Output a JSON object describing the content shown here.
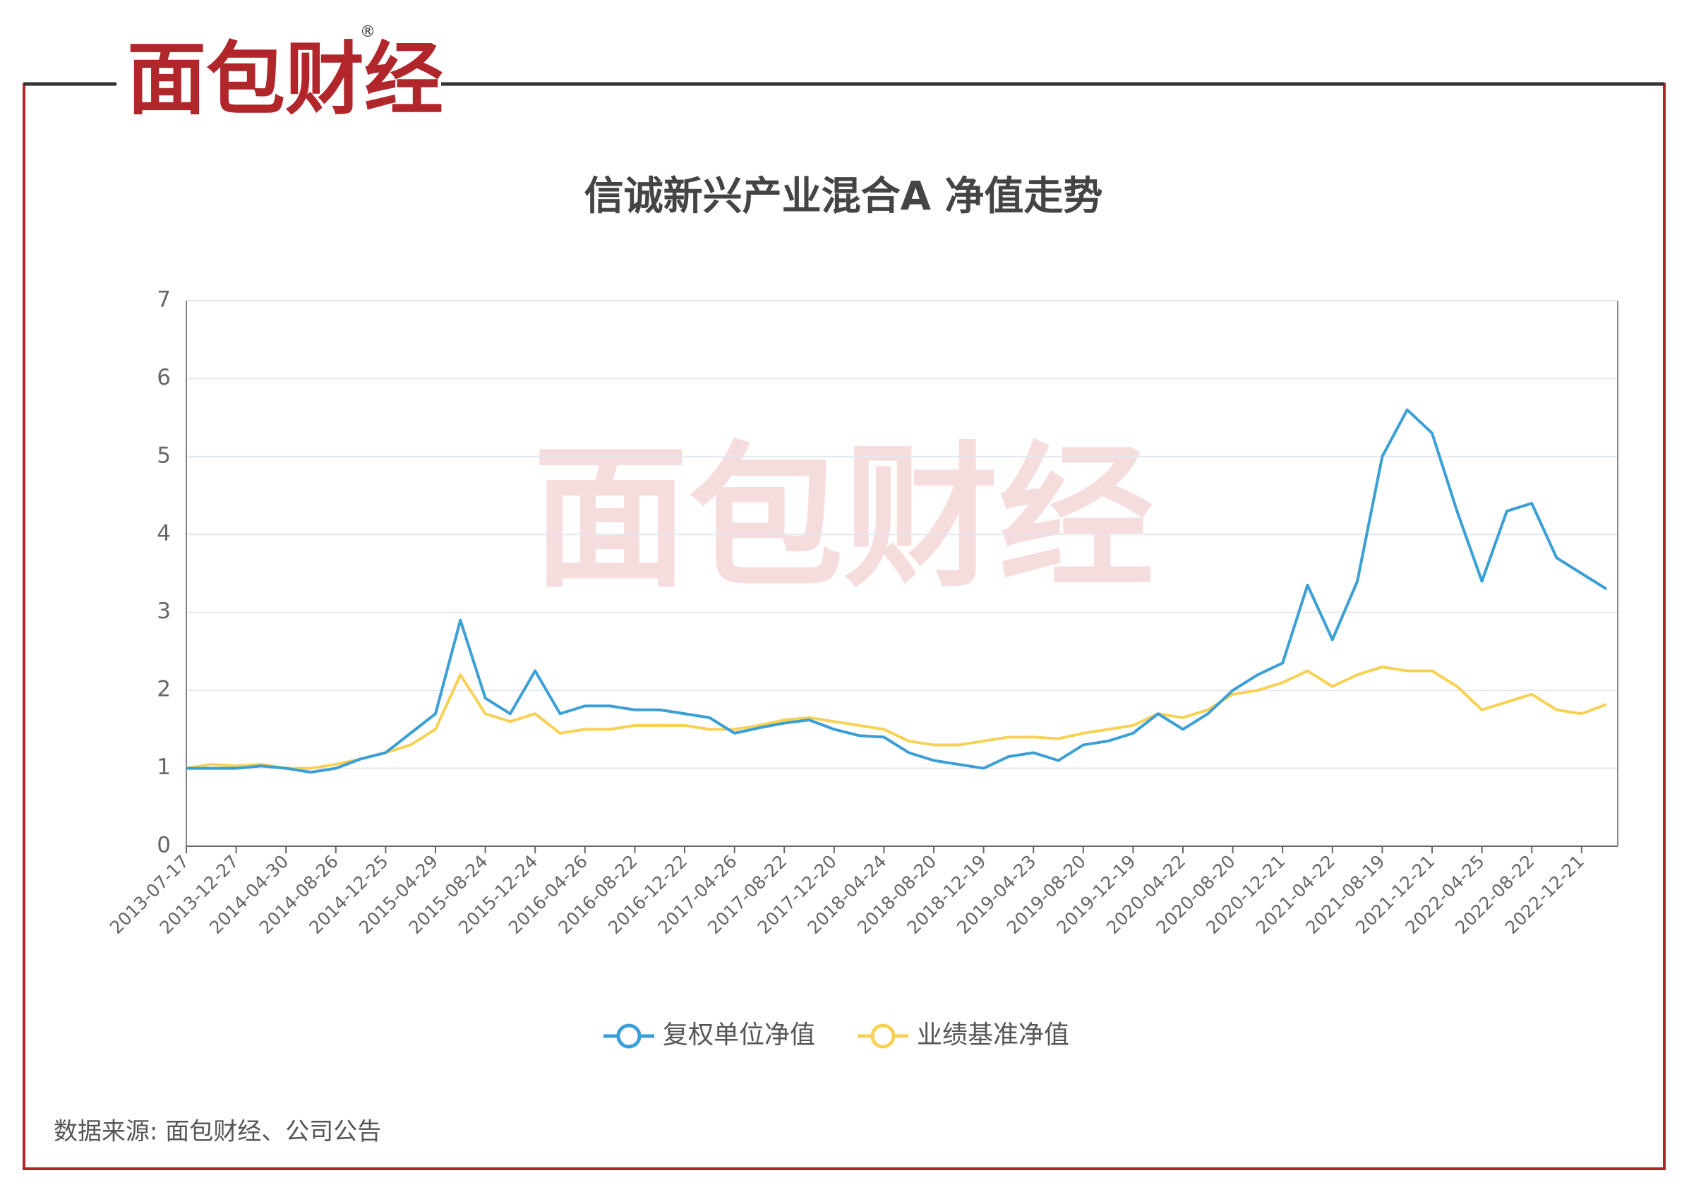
{
  "logo": {
    "name": "面包财经",
    "mark": "®"
  },
  "source": "数据来源: 面包财经、公司公告",
  "chart_data": {
    "type": "line",
    "title": "信诚新兴产业混合A 净值走势",
    "categories": [
      "2013-07-17",
      null,
      "2013-12-27",
      null,
      "2014-04-30",
      null,
      "2014-08-26",
      null,
      "2014-12-25",
      null,
      "2015-04-29",
      null,
      "2015-08-24",
      null,
      "2015-12-24",
      null,
      "2016-04-26",
      null,
      "2016-08-22",
      null,
      "2016-12-22",
      null,
      "2017-04-26",
      null,
      "2017-08-22",
      null,
      "2017-12-20",
      null,
      "2018-04-24",
      null,
      "2018-08-20",
      null,
      "2018-12-19",
      null,
      "2019-04-23",
      null,
      "2019-08-20",
      null,
      "2019-12-19",
      null,
      "2020-04-22",
      null,
      "2020-08-20",
      null,
      "2020-12-21",
      null,
      "2021-04-22",
      null,
      "2021-08-19",
      null,
      "2021-12-21",
      null,
      "2022-04-25",
      null,
      "2022-08-22",
      null,
      "2022-12-21",
      null
    ],
    "series": [
      {
        "name": "复权单位净值",
        "color": "#3a9fd6",
        "values": [
          1.0,
          1.0,
          1.0,
          1.03,
          1.0,
          0.95,
          1.0,
          1.12,
          1.2,
          1.45,
          1.7,
          2.9,
          1.9,
          1.7,
          2.25,
          1.7,
          1.8,
          1.8,
          1.75,
          1.75,
          1.7,
          1.65,
          1.45,
          1.52,
          1.58,
          1.62,
          1.5,
          1.42,
          1.4,
          1.2,
          1.1,
          1.05,
          1.0,
          1.15,
          1.2,
          1.1,
          1.3,
          1.35,
          1.45,
          1.7,
          1.5,
          1.7,
          2.0,
          2.2,
          2.35,
          3.35,
          2.65,
          3.4,
          5.0,
          5.6,
          5.3,
          4.3,
          3.4,
          4.3,
          4.4,
          3.7,
          3.5,
          3.3
        ]
      },
      {
        "name": "业绩基准净值",
        "color": "#f7d154",
        "values": [
          1.0,
          1.05,
          1.03,
          1.05,
          1.0,
          1.0,
          1.05,
          1.12,
          1.2,
          1.3,
          1.5,
          2.2,
          1.7,
          1.6,
          1.7,
          1.45,
          1.5,
          1.5,
          1.55,
          1.55,
          1.55,
          1.5,
          1.5,
          1.55,
          1.62,
          1.65,
          1.6,
          1.55,
          1.5,
          1.35,
          1.3,
          1.3,
          1.35,
          1.4,
          1.4,
          1.38,
          1.45,
          1.5,
          1.55,
          1.7,
          1.65,
          1.75,
          1.95,
          2.0,
          2.1,
          2.25,
          2.05,
          2.2,
          2.3,
          2.25,
          2.25,
          2.05,
          1.75,
          1.85,
          1.95,
          1.75,
          1.7,
          1.82
        ]
      }
    ],
    "ylim": [
      0,
      7
    ],
    "yticks": [
      0,
      1,
      2,
      3,
      4,
      5,
      6,
      7
    ],
    "grid": true,
    "legend": "bottom"
  }
}
